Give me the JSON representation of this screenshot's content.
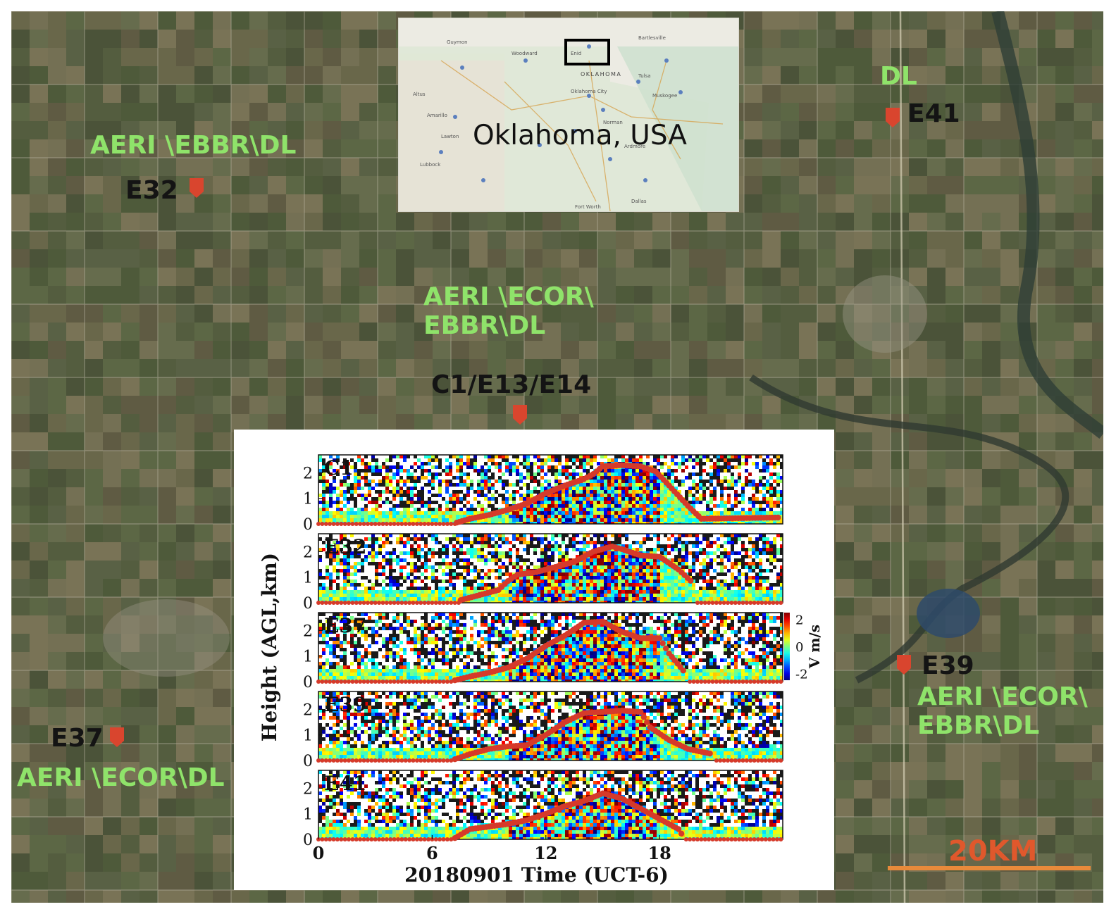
{
  "map": {
    "inset": {
      "title": "Oklahoma, USA",
      "state_label": "OKLAHOMA",
      "places": [
        "Guymon",
        "Woodward",
        "Enid",
        "Bartlesville",
        "Tulsa",
        "Muskogee",
        "Oklahoma City",
        "Norman",
        "Ardmore",
        "Dallas",
        "Fort Worth",
        "Lawton",
        "Altus",
        "Amarillo",
        "Lubbock"
      ]
    },
    "sites": [
      {
        "code": "E41",
        "instruments": [
          "DL"
        ]
      },
      {
        "code": "E32",
        "instruments": [
          "AERI \\EBBR\\DL"
        ]
      },
      {
        "code": "C1/E13/E14",
        "instruments": [
          "AERI \\ECOR\\",
          "EBBR\\DL"
        ]
      },
      {
        "code": "E39",
        "instruments": [
          "AERI \\ECOR\\",
          "EBBR\\DL"
        ]
      },
      {
        "code": "E37",
        "instruments": [
          "AERI \\ECOR\\DL"
        ]
      }
    ],
    "scale_bar": {
      "label": "20KM"
    },
    "colors": {
      "site_label": "#141414",
      "instrument_label": "#8fe36a",
      "marker": "#d9452e",
      "scale_bar": "#e98a3b"
    }
  },
  "chart_data": {
    "type": "heatmap",
    "title": "",
    "xlabel": "20180901 Time (UCT-6)",
    "ylabel": "Height (AGL,km)",
    "x_ticks": [
      0,
      6,
      12,
      18
    ],
    "xlim": [
      0,
      24.5
    ],
    "y_ticks": [
      0,
      1,
      2
    ],
    "ylim": [
      0,
      2.7
    ],
    "colorbar": {
      "label": "V m/s",
      "ticks": [
        2,
        0,
        -2
      ],
      "range": [
        -2.5,
        2.5
      ],
      "colormap": "jet"
    },
    "overlay_series_color": "#d63a2a",
    "panels": [
      {
        "name": "C1",
        "boundary_layer_height": {
          "x": [
            7.3,
            8,
            9,
            10,
            11,
            12,
            13,
            14,
            14.5,
            15,
            16,
            17,
            17.8,
            18.5,
            19.5,
            20.2,
            24.4
          ],
          "y": [
            0.05,
            0.2,
            0.35,
            0.55,
            0.8,
            1.2,
            1.5,
            1.75,
            1.95,
            2.25,
            2.3,
            2.25,
            2.05,
            1.5,
            0.7,
            0.2,
            0.25
          ]
        }
      },
      {
        "name": "E32",
        "boundary_layer_height": {
          "x": [
            7.5,
            8.5,
            9.5,
            10,
            10.5,
            11.5,
            12.5,
            13.5,
            14.5,
            15.5,
            16,
            17,
            18,
            19,
            19.8
          ],
          "y": [
            0.1,
            0.3,
            0.5,
            0.85,
            1.1,
            1.2,
            1.4,
            1.6,
            2.0,
            2.2,
            2.1,
            1.85,
            1.8,
            1.3,
            0.75
          ]
        }
      },
      {
        "name": "E37",
        "boundary_layer_height": {
          "x": [
            7.2,
            8,
            9,
            10,
            11,
            12,
            13,
            14,
            15,
            16,
            17,
            18,
            18.5,
            19.4
          ],
          "y": [
            0.05,
            0.2,
            0.35,
            0.55,
            0.9,
            1.4,
            1.8,
            2.3,
            2.35,
            1.95,
            1.7,
            1.7,
            1.1,
            0.3
          ]
        }
      },
      {
        "name": "E39",
        "boundary_layer_height": {
          "x": [
            7.2,
            8,
            9,
            10,
            11,
            12,
            13,
            14,
            15,
            16,
            17,
            17.5,
            18.5,
            19.5,
            20.8
          ],
          "y": [
            0.05,
            0.25,
            0.45,
            0.55,
            0.6,
            1.0,
            1.5,
            1.85,
            1.9,
            1.95,
            1.9,
            1.3,
            0.8,
            0.45,
            0.25
          ]
        }
      },
      {
        "name": "E41",
        "boundary_layer_height": {
          "x": [
            7.2,
            8,
            9,
            10,
            11,
            12,
            13,
            14,
            15,
            16,
            17,
            18,
            19,
            19.3
          ],
          "y": [
            0.05,
            0.4,
            0.5,
            0.6,
            0.75,
            1.0,
            1.3,
            1.5,
            1.8,
            1.6,
            1.2,
            0.8,
            0.4,
            0.05
          ]
        }
      }
    ]
  }
}
